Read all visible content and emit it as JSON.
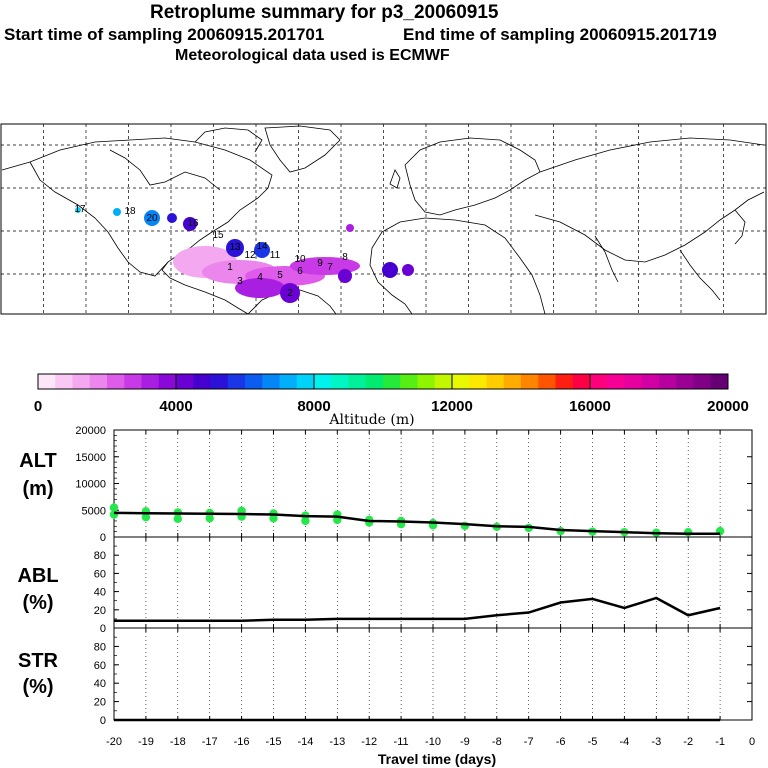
{
  "header": {
    "title": "Retroplume summary for p3_20060915",
    "start": "Start time of sampling 20060915.201701",
    "end": "End time of sampling 20060915.201719",
    "met": "Meteorological data used is ECMWF"
  },
  "colorbar": {
    "label": "Altitude (m)",
    "ticks": [
      "0",
      "4000",
      "8000",
      "12000",
      "16000",
      "20000"
    ],
    "colors": [
      "#fde6f7",
      "#f9c9f3",
      "#f3a8ef",
      "#eb86ec",
      "#de5ce9",
      "#c83ae6",
      "#a91fe1",
      "#8a09d9",
      "#6a00d4",
      "#4500d0",
      "#2a12d8",
      "#1a36e6",
      "#0d5cf0",
      "#0486f6",
      "#00aef9",
      "#00d3fa",
      "#00f2ef",
      "#00f7c3",
      "#00f19a",
      "#00ec70",
      "#25ea3c",
      "#57ee14",
      "#8ff400",
      "#c2f700",
      "#e8f800",
      "#fbea00",
      "#ffcd00",
      "#ffab00",
      "#ff8400",
      "#ff5500",
      "#ff1e12",
      "#ff0045",
      "#ff007c",
      "#f70096",
      "#e6009f",
      "#d000a5",
      "#b600a0",
      "#9a0094",
      "#7f0085",
      "#640073"
    ]
  },
  "chart_data": [
    {
      "type": "line",
      "title": "ALT (m)",
      "row_label": "ALT",
      "row_unit": "(m)",
      "x": [
        -20,
        -19,
        -18,
        -17,
        -16,
        -15,
        -14,
        -13,
        -12,
        -11,
        -10,
        -9,
        -8,
        -7,
        -6,
        -5,
        -4,
        -3,
        -2,
        -1
      ],
      "values": [
        4500,
        4450,
        4400,
        4350,
        4300,
        4200,
        3900,
        3800,
        3000,
        2900,
        2700,
        2400,
        2000,
        1900,
        1300,
        1100,
        900,
        700,
        600,
        600
      ],
      "scatter": [
        [
          -20,
          4200
        ],
        [
          -20,
          5500
        ],
        [
          -19,
          3700
        ],
        [
          -19,
          4800
        ],
        [
          -18,
          3400
        ],
        [
          -18,
          4600
        ],
        [
          -17,
          3500
        ],
        [
          -17,
          4500
        ],
        [
          -16,
          3800
        ],
        [
          -16,
          4900
        ],
        [
          -15,
          3500
        ],
        [
          -15,
          4400
        ],
        [
          -14,
          3000
        ],
        [
          -14,
          4000
        ],
        [
          -13,
          3200
        ],
        [
          -13,
          4200
        ],
        [
          -12,
          2700
        ],
        [
          -12,
          3200
        ],
        [
          -11,
          2400
        ],
        [
          -11,
          3000
        ],
        [
          -10,
          2200
        ],
        [
          -10,
          2600
        ],
        [
          -9,
          2100
        ],
        [
          -8,
          1900
        ],
        [
          -7,
          1700
        ],
        [
          -6,
          1100
        ],
        [
          -5,
          1000
        ],
        [
          -4,
          900
        ],
        [
          -3,
          800
        ],
        [
          -2,
          900
        ],
        [
          -1,
          1100
        ]
      ],
      "ylim": [
        0,
        20000
      ],
      "yticks": [
        "0",
        "5000",
        "10000",
        "15000",
        "20000"
      ]
    },
    {
      "type": "line",
      "title": "ABL (%)",
      "row_label": "ABL",
      "row_unit": "(%)",
      "x": [
        -20,
        -19,
        -18,
        -17,
        -16,
        -15,
        -14,
        -13,
        -12,
        -11,
        -10,
        -9,
        -8,
        -7,
        -6,
        -5,
        -4,
        -3,
        -2,
        -1
      ],
      "values": [
        8,
        8,
        8,
        8,
        8,
        9,
        9,
        10,
        10,
        10,
        10,
        10,
        14,
        17,
        28,
        32,
        22,
        33,
        14,
        22
      ],
      "ylim": [
        0,
        100
      ],
      "yticks": [
        "0",
        "20",
        "40",
        "60",
        "80"
      ]
    },
    {
      "type": "line",
      "title": "STR (%)",
      "row_label": "STR",
      "row_unit": "(%)",
      "x": [
        -20,
        -19,
        -18,
        -17,
        -16,
        -15,
        -14,
        -13,
        -12,
        -11,
        -10,
        -9,
        -8,
        -7,
        -6,
        -5,
        -4,
        -3,
        -2,
        -1
      ],
      "values": [
        0,
        0,
        0,
        0,
        0,
        0,
        0,
        0,
        0,
        0,
        0,
        0,
        0,
        0,
        0,
        0,
        0,
        0,
        0,
        0
      ],
      "ylim": [
        0,
        100
      ],
      "yticks": [
        "0",
        "20",
        "40",
        "60",
        "80"
      ]
    }
  ],
  "xaxis": {
    "label": "Travel time (days)",
    "ticks": [
      "-20",
      "-19",
      "-18",
      "-17",
      "-16",
      "-15",
      "-14",
      "-13",
      "-12",
      "-11",
      "-10",
      "-9",
      "-8",
      "-7",
      "-6",
      "-5",
      "-4",
      "-3",
      "-2",
      "-1",
      "0"
    ]
  },
  "map": {
    "trajectory_labels": [
      "20",
      "18",
      "17",
      "16",
      "15",
      "14",
      "13",
      "12",
      "11",
      "10",
      "9",
      "8",
      "7",
      "6",
      "5",
      "4",
      "3",
      "2",
      "1"
    ]
  }
}
